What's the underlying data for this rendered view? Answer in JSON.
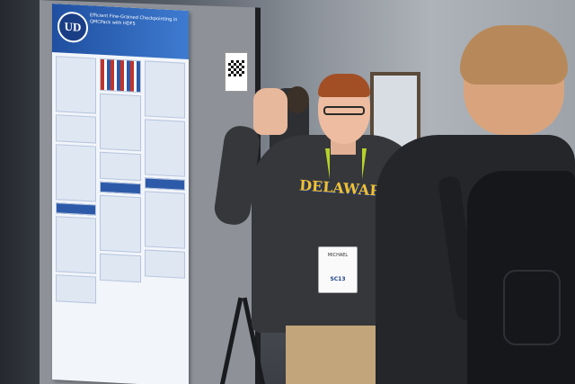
{
  "photo": {
    "alt": "",
    "shirt_text": "DELAWARE",
    "badge_name": "MICHAEL",
    "badge_brand": "SC13",
    "poster_logo": "UD",
    "poster_title": "Efficient Fine-Grained Checkpointing in QMCPack with HDF5"
  },
  "colors": {
    "poster_header": "#2d5aa8",
    "shirt_lettering": "#f2c12e",
    "lanyard": "#b5d22b"
  }
}
